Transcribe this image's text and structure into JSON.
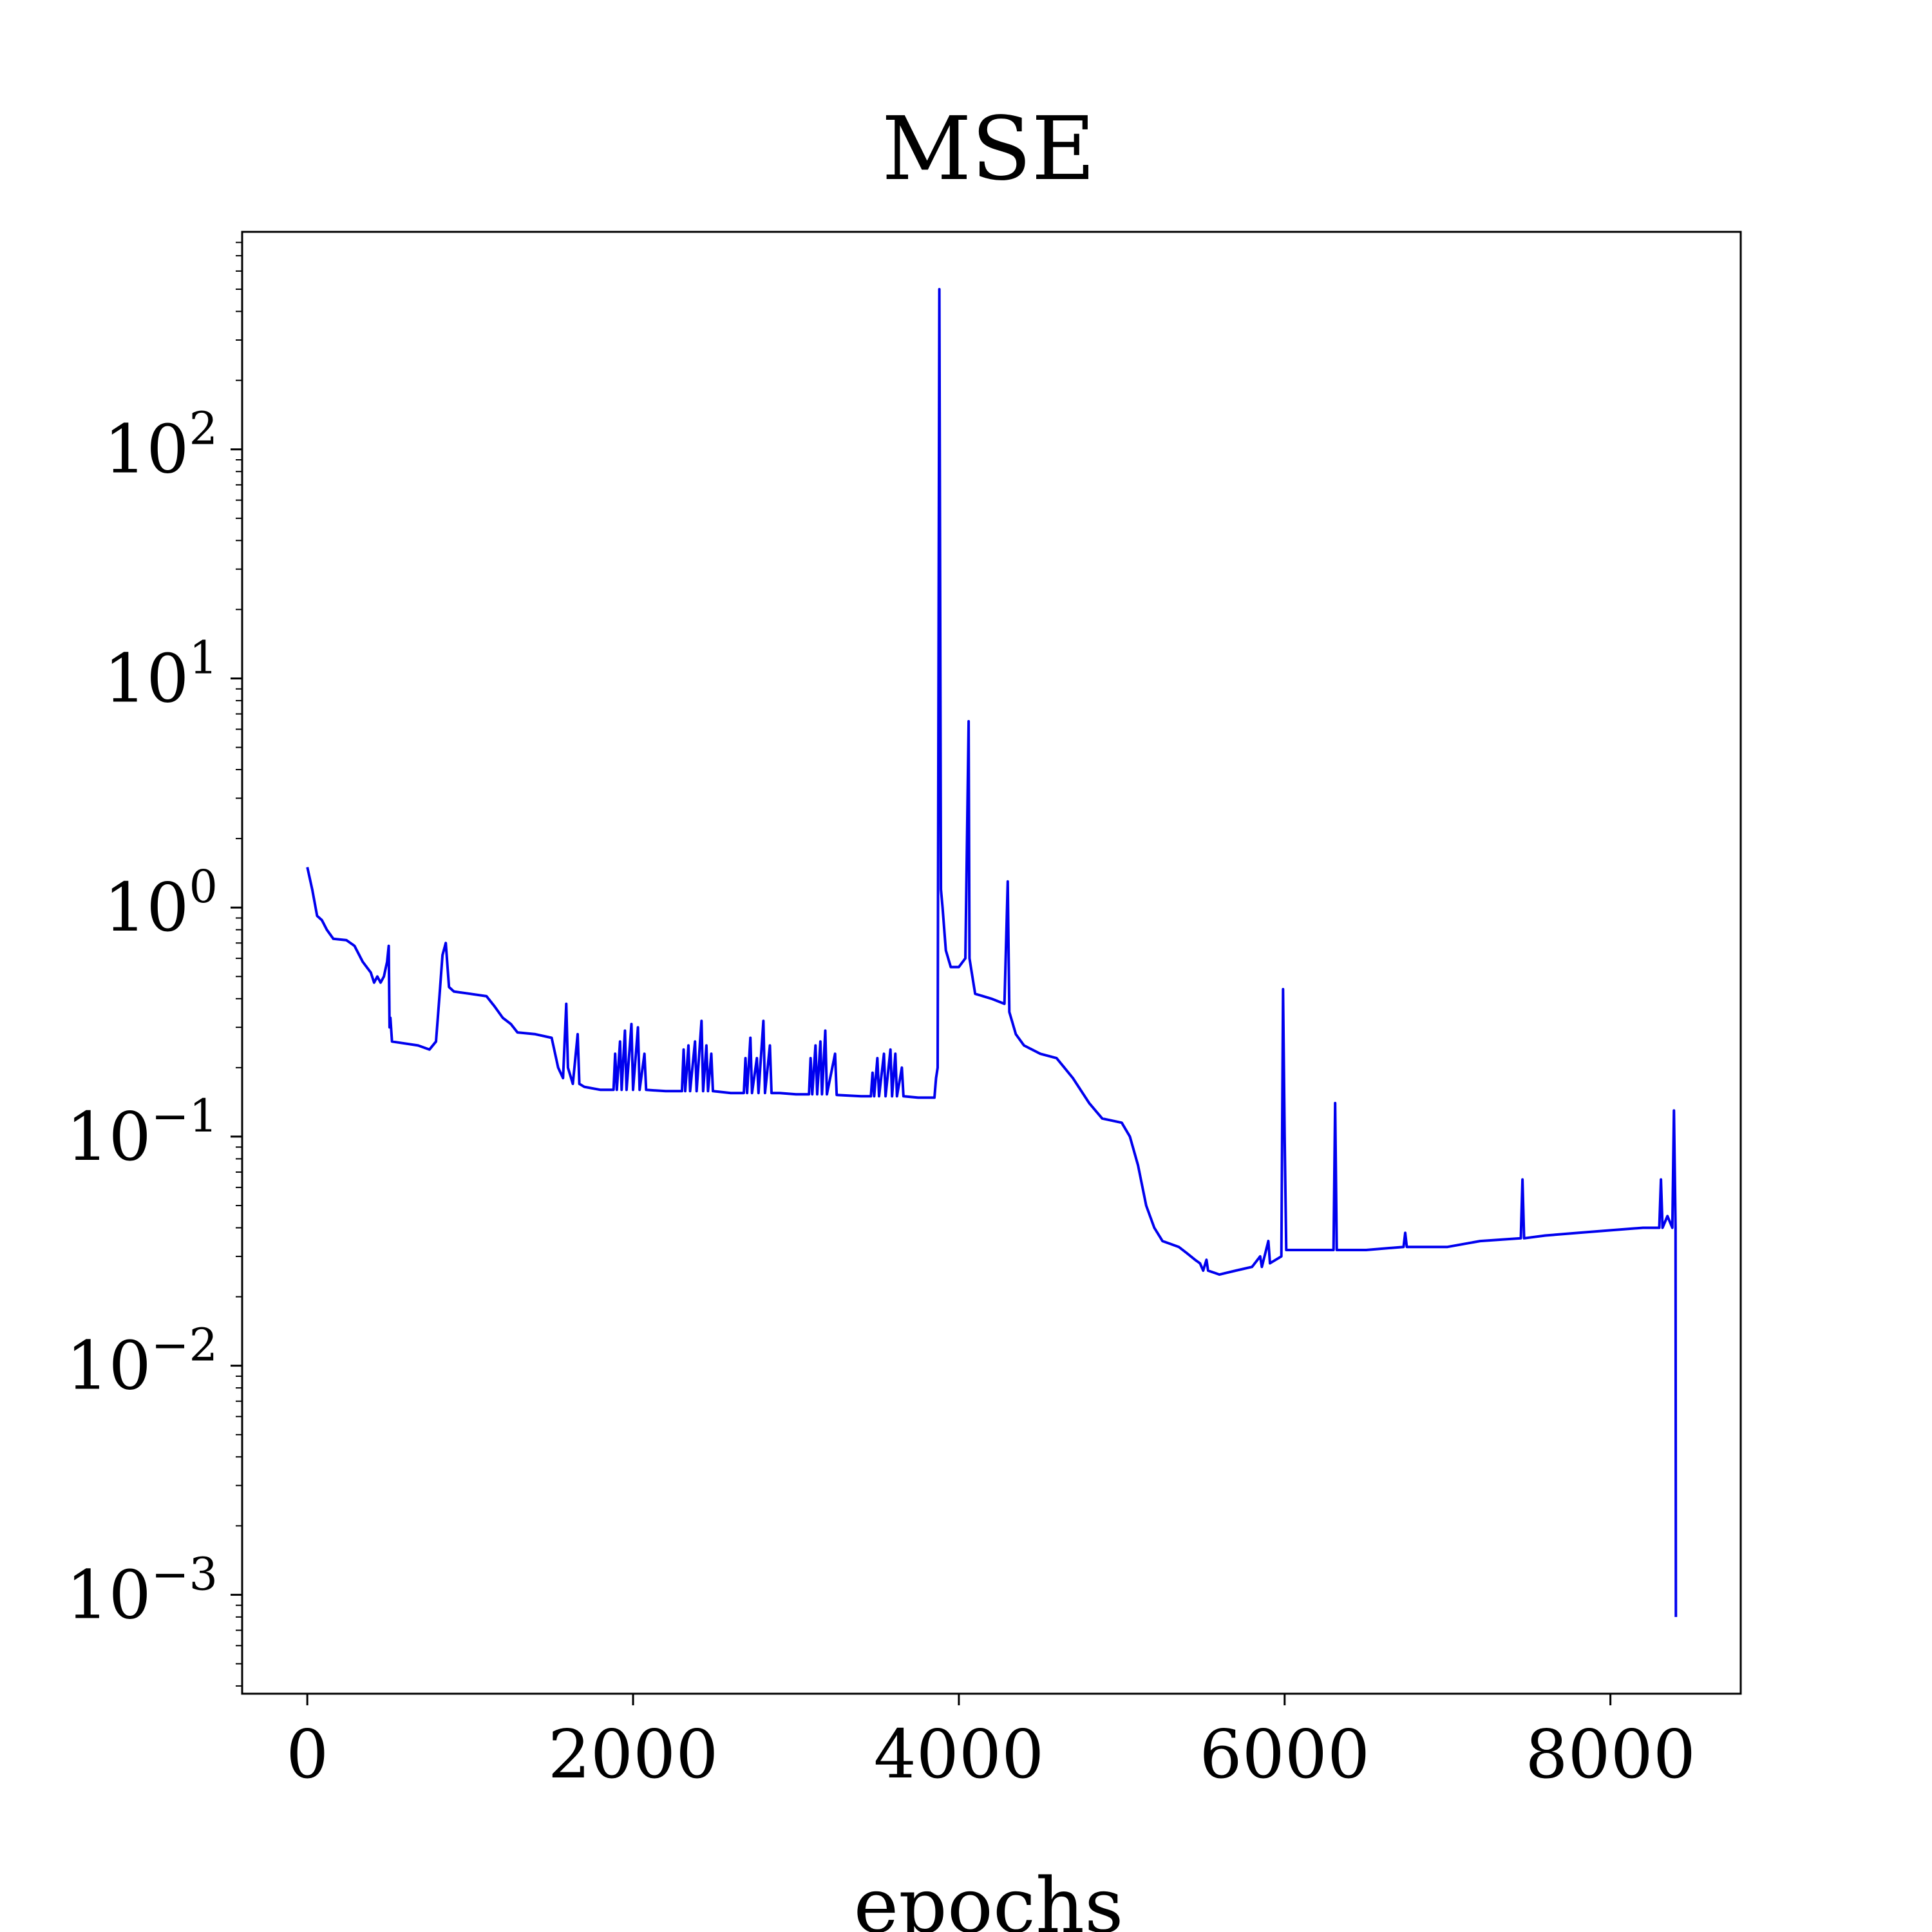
{
  "chart_data": {
    "type": "line",
    "title": "MSE",
    "xlabel": "epochs",
    "ylabel": "",
    "y_scale": "log",
    "xlim": [
      -400,
      8800
    ],
    "ylim": [
      0.00037,
      890
    ],
    "grid": false,
    "x_ticks": [
      {
        "value": 0,
        "label": "0"
      },
      {
        "value": 2000,
        "label": "2000"
      },
      {
        "value": 4000,
        "label": "4000"
      },
      {
        "value": 6000,
        "label": "6000"
      },
      {
        "value": 8000,
        "label": "8000"
      }
    ],
    "y_ticks": [
      {
        "value": 0.001,
        "base": "10",
        "exp": "−3"
      },
      {
        "value": 0.01,
        "base": "10",
        "exp": "−2"
      },
      {
        "value": 0.1,
        "base": "10",
        "exp": "−1"
      },
      {
        "value": 1,
        "base": "10",
        "exp": "0"
      },
      {
        "value": 10,
        "base": "10",
        "exp": "1"
      },
      {
        "value": 100,
        "base": "10",
        "exp": "2"
      }
    ],
    "series": [
      {
        "color": "#0000ee",
        "points": [
          [
            0,
            1.5
          ],
          [
            30,
            1.2
          ],
          [
            60,
            0.92
          ],
          [
            90,
            0.88
          ],
          [
            120,
            0.8
          ],
          [
            160,
            0.73
          ],
          [
            240,
            0.72
          ],
          [
            290,
            0.68
          ],
          [
            340,
            0.58
          ],
          [
            390,
            0.52
          ],
          [
            410,
            0.47
          ],
          [
            430,
            0.5
          ],
          [
            450,
            0.47
          ],
          [
            470,
            0.5
          ],
          [
            490,
            0.58
          ],
          [
            500,
            0.68
          ],
          [
            505,
            0.3
          ],
          [
            510,
            0.33
          ],
          [
            520,
            0.26
          ],
          [
            600,
            0.255
          ],
          [
            680,
            0.25
          ],
          [
            750,
            0.24
          ],
          [
            790,
            0.26
          ],
          [
            810,
            0.4
          ],
          [
            830,
            0.62
          ],
          [
            850,
            0.7
          ],
          [
            870,
            0.45
          ],
          [
            900,
            0.43
          ],
          [
            1000,
            0.42
          ],
          [
            1100,
            0.41
          ],
          [
            1150,
            0.37
          ],
          [
            1200,
            0.33
          ],
          [
            1250,
            0.31
          ],
          [
            1290,
            0.285
          ],
          [
            1400,
            0.28
          ],
          [
            1500,
            0.27
          ],
          [
            1540,
            0.2
          ],
          [
            1570,
            0.18
          ],
          [
            1590,
            0.38
          ],
          [
            1600,
            0.2
          ],
          [
            1630,
            0.17
          ],
          [
            1660,
            0.28
          ],
          [
            1670,
            0.17
          ],
          [
            1700,
            0.165
          ],
          [
            1800,
            0.16
          ],
          [
            1880,
            0.16
          ],
          [
            1890,
            0.23
          ],
          [
            1900,
            0.16
          ],
          [
            1920,
            0.26
          ],
          [
            1930,
            0.16
          ],
          [
            1950,
            0.29
          ],
          [
            1960,
            0.16
          ],
          [
            1990,
            0.31
          ],
          [
            2000,
            0.16
          ],
          [
            2030,
            0.3
          ],
          [
            2040,
            0.16
          ],
          [
            2070,
            0.23
          ],
          [
            2080,
            0.16
          ],
          [
            2200,
            0.158
          ],
          [
            2300,
            0.158
          ],
          [
            2310,
            0.24
          ],
          [
            2320,
            0.158
          ],
          [
            2340,
            0.25
          ],
          [
            2350,
            0.158
          ],
          [
            2380,
            0.26
          ],
          [
            2390,
            0.158
          ],
          [
            2420,
            0.32
          ],
          [
            2430,
            0.158
          ],
          [
            2450,
            0.25
          ],
          [
            2460,
            0.158
          ],
          [
            2480,
            0.23
          ],
          [
            2490,
            0.158
          ],
          [
            2600,
            0.155
          ],
          [
            2680,
            0.155
          ],
          [
            2690,
            0.22
          ],
          [
            2700,
            0.155
          ],
          [
            2720,
            0.27
          ],
          [
            2730,
            0.155
          ],
          [
            2760,
            0.22
          ],
          [
            2770,
            0.155
          ],
          [
            2800,
            0.32
          ],
          [
            2810,
            0.155
          ],
          [
            2840,
            0.25
          ],
          [
            2850,
            0.155
          ],
          [
            2900,
            0.155
          ],
          [
            3000,
            0.153
          ],
          [
            3080,
            0.153
          ],
          [
            3090,
            0.22
          ],
          [
            3100,
            0.153
          ],
          [
            3120,
            0.25
          ],
          [
            3130,
            0.153
          ],
          [
            3150,
            0.26
          ],
          [
            3160,
            0.153
          ],
          [
            3180,
            0.29
          ],
          [
            3190,
            0.153
          ],
          [
            3240,
            0.23
          ],
          [
            3250,
            0.152
          ],
          [
            3400,
            0.15
          ],
          [
            3460,
            0.15
          ],
          [
            3470,
            0.19
          ],
          [
            3480,
            0.15
          ],
          [
            3500,
            0.22
          ],
          [
            3510,
            0.15
          ],
          [
            3540,
            0.23
          ],
          [
            3550,
            0.15
          ],
          [
            3580,
            0.24
          ],
          [
            3590,
            0.15
          ],
          [
            3610,
            0.23
          ],
          [
            3620,
            0.15
          ],
          [
            3650,
            0.2
          ],
          [
            3660,
            0.15
          ],
          [
            3750,
            0.148
          ],
          [
            3850,
            0.148
          ],
          [
            3860,
            0.18
          ],
          [
            3870,
            0.2
          ],
          [
            3880,
            500
          ],
          [
            3890,
            1.2
          ],
          [
            3900,
            1.0
          ],
          [
            3920,
            0.65
          ],
          [
            3950,
            0.55
          ],
          [
            4000,
            0.55
          ],
          [
            4040,
            0.6
          ],
          [
            4060,
            6.5
          ],
          [
            4065,
            0.6
          ],
          [
            4100,
            0.42
          ],
          [
            4200,
            0.4
          ],
          [
            4280,
            0.38
          ],
          [
            4300,
            1.3
          ],
          [
            4310,
            0.35
          ],
          [
            4350,
            0.28
          ],
          [
            4400,
            0.25
          ],
          [
            4500,
            0.23
          ],
          [
            4600,
            0.22
          ],
          [
            4700,
            0.18
          ],
          [
            4800,
            0.14
          ],
          [
            4880,
            0.12
          ],
          [
            5000,
            0.115
          ],
          [
            5050,
            0.1
          ],
          [
            5100,
            0.075
          ],
          [
            5150,
            0.05
          ],
          [
            5200,
            0.04
          ],
          [
            5250,
            0.035
          ],
          [
            5300,
            0.034
          ],
          [
            5350,
            0.033
          ],
          [
            5400,
            0.031
          ],
          [
            5450,
            0.029
          ],
          [
            5480,
            0.028
          ],
          [
            5500,
            0.026
          ],
          [
            5520,
            0.029
          ],
          [
            5530,
            0.026
          ],
          [
            5600,
            0.025
          ],
          [
            5700,
            0.026
          ],
          [
            5800,
            0.027
          ],
          [
            5850,
            0.03
          ],
          [
            5860,
            0.027
          ],
          [
            5900,
            0.035
          ],
          [
            5910,
            0.028
          ],
          [
            5980,
            0.03
          ],
          [
            5990,
            0.44
          ],
          [
            6000,
            0.1
          ],
          [
            6010,
            0.032
          ],
          [
            6100,
            0.032
          ],
          [
            6300,
            0.032
          ],
          [
            6310,
            0.14
          ],
          [
            6320,
            0.032
          ],
          [
            6500,
            0.032
          ],
          [
            6730,
            0.033
          ],
          [
            6740,
            0.038
          ],
          [
            6750,
            0.033
          ],
          [
            7000,
            0.033
          ],
          [
            7200,
            0.035
          ],
          [
            7450,
            0.036
          ],
          [
            7460,
            0.065
          ],
          [
            7470,
            0.036
          ],
          [
            7600,
            0.037
          ],
          [
            7800,
            0.038
          ],
          [
            8000,
            0.039
          ],
          [
            8200,
            0.04
          ],
          [
            8300,
            0.04
          ],
          [
            8310,
            0.065
          ],
          [
            8320,
            0.04
          ],
          [
            8350,
            0.045
          ],
          [
            8380,
            0.04
          ],
          [
            8390,
            0.13
          ],
          [
            8400,
            0.04
          ],
          [
            8402,
            0.0008
          ]
        ]
      }
    ]
  }
}
